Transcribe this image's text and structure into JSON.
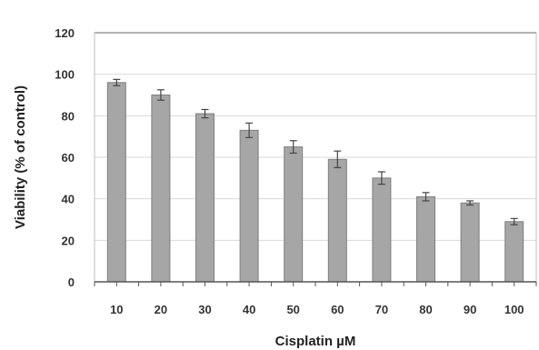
{
  "chart_data": {
    "type": "bar",
    "title": "",
    "xlabel": "Cisplatin µM",
    "ylabel": "Viability (% of control)",
    "categories": [
      "10",
      "20",
      "30",
      "40",
      "50",
      "60",
      "70",
      "80",
      "90",
      "100"
    ],
    "values": [
      96,
      90,
      81,
      73,
      65,
      59,
      50,
      41,
      38,
      29
    ],
    "errors": [
      1.5,
      2.5,
      2,
      3.5,
      3,
      4,
      3,
      2,
      1,
      1.5
    ],
    "ylim": [
      0,
      120
    ],
    "yticks": [
      "0",
      "20",
      "40",
      "60",
      "80",
      "100",
      "120"
    ],
    "grid": true,
    "bar_color": "#a6a6a6",
    "bar_edge_color": "#7f7f7f",
    "grid_color": "#d9d9d9"
  }
}
